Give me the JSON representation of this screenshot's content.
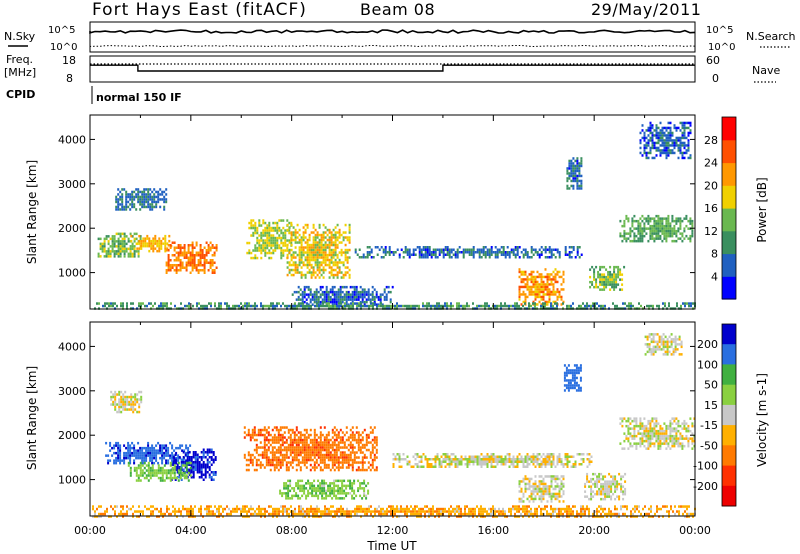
{
  "header": {
    "station": "Fort Hays East (fitACF)",
    "beam": "Beam 08",
    "date": "29/May/2011"
  },
  "top_panels": {
    "nsky_label": "N.Sky",
    "nsearch_label": "N.Search",
    "noise_ticks": [
      "10^5",
      "10^0"
    ],
    "freq_label_1": "Freq.",
    "freq_label_2": "[MHz]",
    "freq_ticks": [
      "18",
      "8"
    ],
    "nave_label": "Nave",
    "nave_ticks": [
      "60",
      "0"
    ],
    "cpid_label": "CPID",
    "cpid_value": "normal 150 IF",
    "freq_series": {
      "x": [
        0,
        1.9,
        1.9,
        14.0,
        14.0,
        24
      ],
      "y": [
        15,
        15,
        12.6,
        12.6,
        15,
        15
      ]
    },
    "nave_level": 45
  },
  "chart_data": [
    {
      "type": "heatmap",
      "title": "",
      "quantity": "Power",
      "xlabel": "",
      "ylabel": "Slant Range [km]",
      "xlim": [
        0,
        24
      ],
      "ylim": [
        180,
        4550
      ],
      "yticks": [
        "1000",
        "2000",
        "3000",
        "4000"
      ],
      "colorbar": {
        "label": "Power [dB]",
        "ticks": [
          "4",
          "8",
          "12",
          "16",
          "20",
          "24",
          "28"
        ],
        "colors": [
          "#0000ff",
          "#2060c0",
          "#3a8f5f",
          "#6ab850",
          "#f0d000",
          "#ff9800",
          "#ff5000",
          "#ff0000"
        ]
      },
      "features": [
        {
          "t": [
            0.3,
            2.0
          ],
          "r": [
            1350,
            1900
          ],
          "v": 14
        },
        {
          "t": [
            1.6,
            3.2
          ],
          "r": [
            1500,
            1850
          ],
          "v": 20
        },
        {
          "t": [
            3.0,
            5.0
          ],
          "r": [
            1000,
            1700
          ],
          "v": 24
        },
        {
          "t": [
            6.2,
            8.0
          ],
          "r": [
            1300,
            2200
          ],
          "v": 16
        },
        {
          "t": [
            7.8,
            10.3
          ],
          "r": [
            900,
            2100
          ],
          "v": 18
        },
        {
          "t": [
            1.0,
            3.0
          ],
          "r": [
            2400,
            2900
          ],
          "v": 8
        },
        {
          "t": [
            8.0,
            12.0
          ],
          "r": [
            250,
            700
          ],
          "v": 6
        },
        {
          "t": [
            10.5,
            19.5
          ],
          "r": [
            1350,
            1600
          ],
          "v": 7
        },
        {
          "t": [
            17.0,
            18.8
          ],
          "r": [
            300,
            1100
          ],
          "v": 22
        },
        {
          "t": [
            19.8,
            21.2
          ],
          "r": [
            600,
            1150
          ],
          "v": 14
        },
        {
          "t": [
            21.0,
            23.9
          ],
          "r": [
            1700,
            2300
          ],
          "v": 12
        },
        {
          "t": [
            18.9,
            19.5
          ],
          "r": [
            2900,
            3600
          ],
          "v": 7
        },
        {
          "t": [
            21.8,
            23.8
          ],
          "r": [
            3600,
            4400
          ],
          "v": 6
        },
        {
          "t": [
            0,
            24
          ],
          "r": [
            190,
            330
          ],
          "v": 10
        }
      ]
    },
    {
      "type": "heatmap",
      "title": "",
      "quantity": "Velocity",
      "xlabel": "Time UT",
      "ylabel": "Slant Range [km]",
      "xlim": [
        0,
        24
      ],
      "ylim": [
        180,
        4550
      ],
      "xticks": [
        "00:00",
        "04:00",
        "08:00",
        "12:00",
        "16:00",
        "20:00",
        "00:00"
      ],
      "yticks": [
        "1000",
        "2000",
        "3000",
        "4000"
      ],
      "colorbar": {
        "label": "Velocity [m s-1]",
        "ticks": [
          "200",
          "100",
          "50",
          "15",
          "-15",
          "-50",
          "-100",
          "-200"
        ],
        "colors": [
          "#0000cc",
          "#2a6fe0",
          "#40b040",
          "#8ad040",
          "#c8c8c8",
          "#ffb000",
          "#ff7a00",
          "#ff3000",
          "#ee0000"
        ]
      },
      "features": [
        {
          "t": [
            0.6,
            4.0
          ],
          "r": [
            1350,
            1850
          ],
          "v": 180
        },
        {
          "t": [
            3.2,
            5.0
          ],
          "r": [
            1000,
            1700
          ],
          "v": 220
        },
        {
          "t": [
            1.5,
            4.0
          ],
          "r": [
            1000,
            1400
          ],
          "v": 45
        },
        {
          "t": [
            0.8,
            2.0
          ],
          "r": [
            2500,
            3000
          ],
          "v": 0
        },
        {
          "t": [
            6.1,
            11.4
          ],
          "r": [
            1200,
            2200
          ],
          "v": -80
        },
        {
          "t": [
            7.5,
            11.0
          ],
          "r": [
            600,
            1000
          ],
          "v": 40
        },
        {
          "t": [
            12.0,
            20.0
          ],
          "r": [
            1300,
            1600
          ],
          "v": 0
        },
        {
          "t": [
            17.0,
            18.8
          ],
          "r": [
            500,
            1100
          ],
          "v": 0
        },
        {
          "t": [
            19.6,
            21.2
          ],
          "r": [
            550,
            1150
          ],
          "v": 0
        },
        {
          "t": [
            21.0,
            24.0
          ],
          "r": [
            1700,
            2400
          ],
          "v": 0
        },
        {
          "t": [
            18.8,
            19.5
          ],
          "r": [
            3000,
            3600
          ],
          "v": 150
        },
        {
          "t": [
            22.0,
            23.5
          ],
          "r": [
            3800,
            4300
          ],
          "v": 0
        },
        {
          "t": [
            0,
            24
          ],
          "r": [
            190,
            420
          ],
          "v": -40
        }
      ]
    }
  ]
}
